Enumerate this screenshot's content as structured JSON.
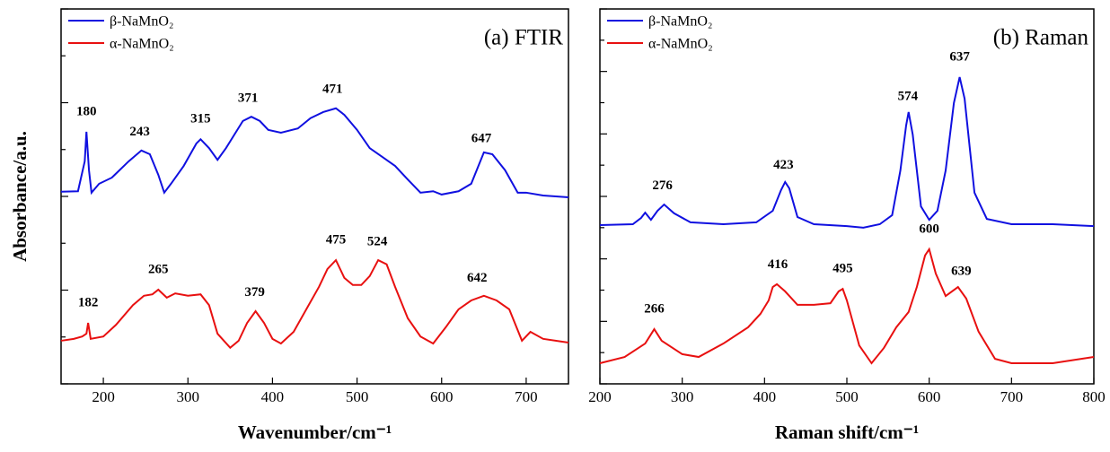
{
  "chart_data": [
    {
      "type": "line",
      "title": "(a) FTIR",
      "xlabel": "Wavenumber/cm⁻¹",
      "ylabel": "Absorbance/a.u.",
      "xlim": [
        150,
        750
      ],
      "xticks": [
        200,
        300,
        400,
        500,
        600,
        700
      ],
      "ylim": [
        0,
        8
      ],
      "yticks": [
        0,
        1,
        2,
        3,
        4,
        5,
        6,
        7,
        8
      ],
      "legend": "upper left",
      "series": [
        {
          "name": "β-NaMnO₂",
          "color": "#1010e0",
          "x": [
            150,
            170,
            178,
            180,
            183,
            186,
            195,
            210,
            230,
            245,
            255,
            265,
            272,
            280,
            295,
            310,
            315,
            325,
            335,
            345,
            355,
            365,
            375,
            385,
            395,
            410,
            430,
            445,
            460,
            475,
            485,
            500,
            515,
            530,
            545,
            560,
            575,
            590,
            600,
            620,
            635,
            650,
            660,
            675,
            690,
            700,
            720,
            750
          ],
          "values": [
            4.1,
            4.11,
            4.75,
            5.38,
            4.56,
            4.08,
            4.27,
            4.4,
            4.75,
            4.98,
            4.9,
            4.46,
            4.08,
            4.27,
            4.65,
            5.13,
            5.22,
            5.03,
            4.78,
            5.03,
            5.32,
            5.61,
            5.7,
            5.61,
            5.42,
            5.36,
            5.45,
            5.67,
            5.8,
            5.88,
            5.74,
            5.42,
            5.03,
            4.84,
            4.65,
            4.36,
            4.08,
            4.11,
            4.04,
            4.11,
            4.27,
            4.94,
            4.9,
            4.56,
            4.08,
            4.08,
            4.02,
            3.98
          ],
          "peaks": [
            180,
            243,
            315,
            371,
            471,
            647
          ]
        },
        {
          "name": "α-NaMnO₂",
          "color": "#e81010",
          "x": [
            150,
            165,
            175,
            180,
            182,
            185,
            200,
            215,
            235,
            248,
            258,
            265,
            275,
            285,
            300,
            315,
            325,
            335,
            350,
            360,
            370,
            380,
            390,
            400,
            410,
            425,
            440,
            455,
            465,
            475,
            485,
            495,
            505,
            515,
            525,
            535,
            545,
            560,
            575,
            590,
            605,
            620,
            635,
            650,
            665,
            680,
            695,
            705,
            720,
            750
          ],
          "values": [
            0.92,
            0.96,
            1.01,
            1.07,
            1.3,
            0.96,
            1.01,
            1.26,
            1.68,
            1.88,
            1.91,
            2.01,
            1.84,
            1.93,
            1.88,
            1.91,
            1.68,
            1.07,
            0.77,
            0.92,
            1.3,
            1.55,
            1.3,
            0.96,
            0.86,
            1.11,
            1.59,
            2.07,
            2.45,
            2.64,
            2.26,
            2.11,
            2.11,
            2.3,
            2.64,
            2.55,
            2.07,
            1.4,
            1.01,
            0.86,
            1.21,
            1.59,
            1.78,
            1.88,
            1.78,
            1.59,
            0.92,
            1.11,
            0.96,
            0.88
          ],
          "peaks": [
            182,
            265,
            379,
            475,
            524,
            642
          ]
        }
      ]
    },
    {
      "type": "line",
      "title": "(b) Raman",
      "xlabel": "Raman shift/cm⁻¹",
      "xlim": [
        200,
        800
      ],
      "xticks": [
        200,
        300,
        400,
        500,
        600,
        700,
        800
      ],
      "ylim": [
        0,
        12
      ],
      "yticks": [
        0,
        1,
        2,
        3,
        4,
        5,
        6,
        7,
        8,
        9,
        10,
        11,
        12
      ],
      "legend": "upper left",
      "series": [
        {
          "name": "β-NaMnO₂",
          "color": "#1010e0",
          "x": [
            200,
            240,
            250,
            255,
            262,
            270,
            278,
            290,
            310,
            350,
            390,
            410,
            420,
            425,
            430,
            440,
            460,
            500,
            520,
            540,
            555,
            565,
            572,
            575,
            580,
            590,
            600,
            610,
            620,
            630,
            637,
            643,
            655,
            670,
            700,
            750,
            800
          ],
          "values": [
            5.08,
            5.11,
            5.31,
            5.48,
            5.25,
            5.54,
            5.74,
            5.46,
            5.17,
            5.11,
            5.17,
            5.54,
            6.2,
            6.46,
            6.26,
            5.34,
            5.11,
            5.05,
            5.0,
            5.11,
            5.4,
            6.83,
            8.27,
            8.7,
            7.98,
            5.68,
            5.25,
            5.54,
            6.83,
            8.99,
            9.82,
            9.13,
            6.12,
            5.28,
            5.11,
            5.11,
            5.05
          ],
          "peaks": [
            276,
            423,
            574,
            637
          ]
        },
        {
          "name": "α-NaMnO₂",
          "color": "#e81010",
          "x": [
            200,
            230,
            255,
            266,
            275,
            300,
            320,
            350,
            380,
            395,
            405,
            410,
            415,
            425,
            440,
            460,
            480,
            490,
            495,
            500,
            515,
            530,
            545,
            560,
            575,
            585,
            595,
            600,
            608,
            620,
            635,
            645,
            660,
            680,
            700,
            750,
            800
          ],
          "values": [
            0.66,
            0.86,
            1.29,
            1.75,
            1.38,
            0.95,
            0.86,
            1.29,
            1.81,
            2.24,
            2.67,
            3.1,
            3.19,
            2.96,
            2.53,
            2.53,
            2.58,
            2.96,
            3.04,
            2.67,
            1.23,
            0.66,
            1.15,
            1.81,
            2.3,
            3.1,
            4.11,
            4.31,
            3.53,
            2.81,
            3.1,
            2.73,
            1.67,
            0.8,
            0.66,
            0.66,
            0.86
          ],
          "peaks": [
            266,
            416,
            495,
            600,
            639
          ]
        }
      ]
    }
  ]
}
